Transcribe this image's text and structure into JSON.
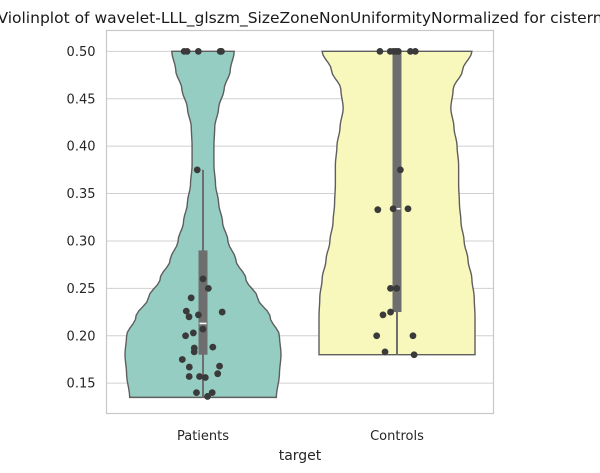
{
  "chart_data": {
    "type": "violin",
    "title": "Violinplot of wavelet-LLL_glszm_SizeZoneNonUniformityNormalized for cistern",
    "xlabel": "target",
    "ylabel": "",
    "ylim": [
      0.118,
      0.522
    ],
    "yticks": [
      "0.15",
      "0.20",
      "0.25",
      "0.30",
      "0.35",
      "0.40",
      "0.45",
      "0.50"
    ],
    "grid": "horizontal",
    "categories": [
      "Patients",
      "Controls"
    ],
    "colors": [
      "#95cdc2",
      "#f8f8bc"
    ],
    "groups": [
      {
        "name": "Patients",
        "range": [
          0.135,
          0.5
        ],
        "box": {
          "whisker_low": 0.135,
          "q1": 0.18,
          "median": 0.213,
          "q3": 0.29,
          "whisker_high": 0.375
        },
        "density": [
          [
            0.135,
            0.94
          ],
          [
            0.16,
            0.98
          ],
          [
            0.18,
            1.0
          ],
          [
            0.2,
            0.98
          ],
          [
            0.22,
            0.86
          ],
          [
            0.24,
            0.7
          ],
          [
            0.26,
            0.55
          ],
          [
            0.28,
            0.42
          ],
          [
            0.3,
            0.32
          ],
          [
            0.32,
            0.25
          ],
          [
            0.34,
            0.2
          ],
          [
            0.36,
            0.16
          ],
          [
            0.38,
            0.14
          ],
          [
            0.4,
            0.14
          ],
          [
            0.42,
            0.15
          ],
          [
            0.44,
            0.2
          ],
          [
            0.46,
            0.27
          ],
          [
            0.48,
            0.35
          ],
          [
            0.5,
            0.4
          ]
        ],
        "points": [
          0.5,
          0.5,
          0.5,
          0.5,
          0.5,
          0.5,
          0.375,
          0.26,
          0.25,
          0.24,
          0.226,
          0.225,
          0.222,
          0.22,
          0.207,
          0.203,
          0.2,
          0.188,
          0.187,
          0.183,
          0.175,
          0.168,
          0.167,
          0.16,
          0.157,
          0.157,
          0.156,
          0.14,
          0.14,
          0.136
        ]
      },
      {
        "name": "Controls",
        "range": [
          0.18,
          0.5
        ],
        "box": {
          "whisker_low": 0.18,
          "q1": 0.225,
          "median": 0.334,
          "q3": 0.5,
          "whisker_high": 0.5
        },
        "density": [
          [
            0.18,
            1.0
          ],
          [
            0.2,
            1.0
          ],
          [
            0.22,
            1.0
          ],
          [
            0.24,
            0.99
          ],
          [
            0.26,
            0.96
          ],
          [
            0.28,
            0.91
          ],
          [
            0.3,
            0.86
          ],
          [
            0.32,
            0.82
          ],
          [
            0.34,
            0.8
          ],
          [
            0.36,
            0.79
          ],
          [
            0.38,
            0.79
          ],
          [
            0.4,
            0.77
          ],
          [
            0.42,
            0.73
          ],
          [
            0.44,
            0.69
          ],
          [
            0.46,
            0.72
          ],
          [
            0.48,
            0.84
          ],
          [
            0.5,
            0.96
          ]
        ],
        "points": [
          0.5,
          0.5,
          0.5,
          0.5,
          0.5,
          0.5,
          0.5,
          0.375,
          0.334,
          0.334,
          0.333,
          0.25,
          0.25,
          0.225,
          0.222,
          0.2,
          0.2,
          0.183,
          0.18
        ]
      }
    ]
  }
}
